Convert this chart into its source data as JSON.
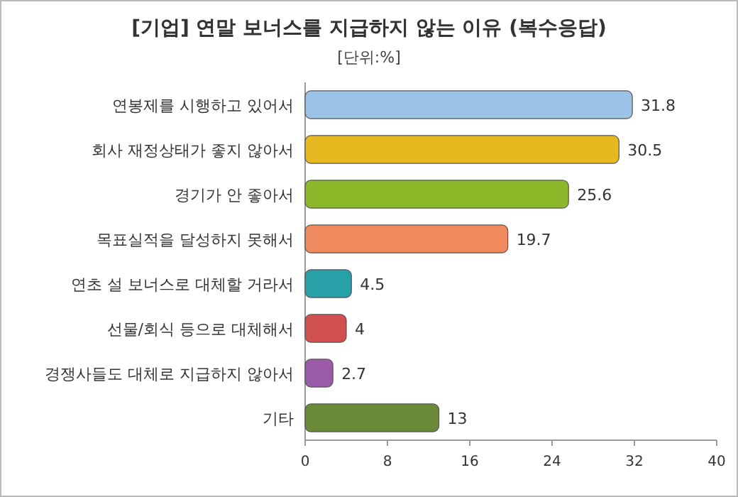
{
  "chart_data": {
    "type": "bar",
    "orientation": "horizontal",
    "title": "[기업] 연말 보너스를 지급하지 않는 이유 (복수응답)",
    "subtitle": "[단위:%]",
    "categories": [
      "연봉제를 시행하고 있어서",
      "회사 재정상태가 좋지 않아서",
      "경기가 안 좋아서",
      "목표실적을 달성하지 못해서",
      "연초 설 보너스로 대체할 거라서",
      "선물/회식 등으로 대체해서",
      "경쟁사들도 대체로 지급하지 않아서",
      "기타"
    ],
    "values": [
      31.8,
      30.5,
      25.6,
      19.7,
      4.5,
      4,
      2.7,
      13
    ],
    "colors": [
      "#9cc3e6",
      "#e8b820",
      "#8cb82a",
      "#ee8a5e",
      "#27a0a8",
      "#d05050",
      "#9a5aa8",
      "#6a8a3a"
    ],
    "xlim": [
      0,
      40
    ],
    "xticks": [
      0,
      8,
      16,
      24,
      32,
      40
    ],
    "data_labels": true
  }
}
